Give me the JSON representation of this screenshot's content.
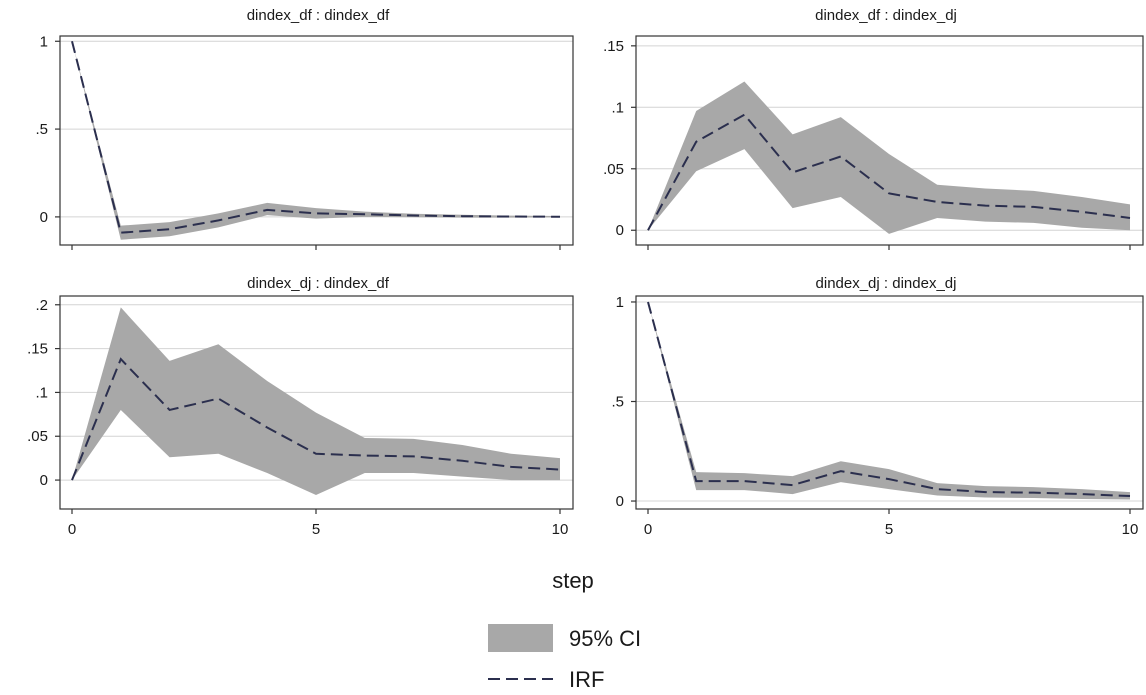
{
  "figure": {
    "xlabel": "step",
    "legend": [
      {
        "key": "ci",
        "label": "95% CI"
      },
      {
        "key": "irf",
        "label": "IRF"
      }
    ]
  },
  "colors": {
    "ci_fill": "#a8a8a8",
    "irf_line": "#2b2f4e",
    "grid": "#d4d4d4",
    "axis": "#333333"
  },
  "chart_data": [
    {
      "type": "area",
      "title": "dindex_df : dindex_df",
      "x": [
        0,
        1,
        2,
        3,
        4,
        5,
        6,
        7,
        8,
        9,
        10
      ],
      "xticks": [
        "0",
        "5",
        "10"
      ],
      "xlim": [
        0,
        10
      ],
      "ylim": [
        -0.16,
        1.03
      ],
      "yticks": [
        {
          "v": 0,
          "label": "0"
        },
        {
          "v": 0.5,
          "label": ".5"
        },
        {
          "v": 1,
          "label": "1"
        }
      ],
      "series": [
        {
          "key": "irf",
          "values": [
            1,
            -0.09,
            -0.07,
            -0.02,
            0.04,
            0.02,
            0.015,
            0.008,
            0.004,
            0.002,
            0.001
          ]
        },
        {
          "key": "ci_upper",
          "values": [
            1,
            -0.05,
            -0.03,
            0.02,
            0.08,
            0.05,
            0.03,
            0.018,
            0.012,
            0.007,
            0.005
          ]
        },
        {
          "key": "ci_lower",
          "values": [
            1,
            -0.13,
            -0.11,
            -0.06,
            0.01,
            -0.01,
            0.0,
            -0.002,
            -0.004,
            -0.004,
            -0.003
          ]
        }
      ]
    },
    {
      "type": "area",
      "title": "dindex_df : dindex_dj",
      "x": [
        0,
        1,
        2,
        3,
        4,
        5,
        6,
        7,
        8,
        9,
        10
      ],
      "xticks": [
        "0",
        "5",
        "10"
      ],
      "xlim": [
        0,
        10
      ],
      "ylim": [
        -0.012,
        0.158
      ],
      "yticks": [
        {
          "v": 0,
          "label": "0"
        },
        {
          "v": 0.05,
          "label": ".05"
        },
        {
          "v": 0.1,
          "label": ".1"
        },
        {
          "v": 0.15,
          "label": ".15"
        }
      ],
      "series": [
        {
          "key": "irf",
          "values": [
            0,
            0.072,
            0.094,
            0.047,
            0.06,
            0.03,
            0.023,
            0.02,
            0.019,
            0.015,
            0.01
          ]
        },
        {
          "key": "ci_upper",
          "values": [
            0,
            0.097,
            0.121,
            0.078,
            0.092,
            0.062,
            0.037,
            0.034,
            0.032,
            0.027,
            0.021
          ]
        },
        {
          "key": "ci_lower",
          "values": [
            0,
            0.048,
            0.066,
            0.018,
            0.027,
            -0.003,
            0.01,
            0.007,
            0.006,
            0.002,
            0.0
          ]
        }
      ]
    },
    {
      "type": "area",
      "title": "dindex_dj : dindex_df",
      "x": [
        0,
        1,
        2,
        3,
        4,
        5,
        6,
        7,
        8,
        9,
        10
      ],
      "xticks": [
        "0",
        "5",
        "10"
      ],
      "xlim": [
        0,
        10
      ],
      "ylim": [
        -0.033,
        0.21
      ],
      "yticks": [
        {
          "v": 0,
          "label": "0"
        },
        {
          "v": 0.05,
          "label": ".05"
        },
        {
          "v": 0.1,
          "label": ".1"
        },
        {
          "v": 0.15,
          "label": ".15"
        },
        {
          "v": 0.2,
          "label": ".2"
        }
      ],
      "series": [
        {
          "key": "irf",
          "values": [
            0,
            0.138,
            0.08,
            0.093,
            0.06,
            0.03,
            0.028,
            0.027,
            0.022,
            0.015,
            0.012
          ]
        },
        {
          "key": "ci_upper",
          "values": [
            0,
            0.197,
            0.136,
            0.155,
            0.113,
            0.077,
            0.048,
            0.047,
            0.04,
            0.03,
            0.025
          ]
        },
        {
          "key": "ci_lower",
          "values": [
            0,
            0.08,
            0.026,
            0.03,
            0.008,
            -0.017,
            0.008,
            0.008,
            0.004,
            0.0,
            0.0
          ]
        }
      ]
    },
    {
      "type": "area",
      "title": "dindex_dj : dindex_dj",
      "x": [
        0,
        1,
        2,
        3,
        4,
        5,
        6,
        7,
        8,
        9,
        10
      ],
      "xticks": [
        "0",
        "5",
        "10"
      ],
      "xlim": [
        0,
        10
      ],
      "ylim": [
        -0.04,
        1.03
      ],
      "yticks": [
        {
          "v": 0,
          "label": "0"
        },
        {
          "v": 0.5,
          "label": ".5"
        },
        {
          "v": 1,
          "label": "1"
        }
      ],
      "series": [
        {
          "key": "irf",
          "values": [
            1,
            0.1,
            0.1,
            0.08,
            0.15,
            0.11,
            0.06,
            0.045,
            0.042,
            0.035,
            0.025
          ]
        },
        {
          "key": "ci_upper",
          "values": [
            1,
            0.145,
            0.14,
            0.125,
            0.2,
            0.16,
            0.09,
            0.075,
            0.07,
            0.06,
            0.045
          ]
        },
        {
          "key": "ci_lower",
          "values": [
            1,
            0.055,
            0.055,
            0.035,
            0.095,
            0.06,
            0.028,
            0.018,
            0.015,
            0.01,
            0.008
          ]
        }
      ]
    }
  ]
}
